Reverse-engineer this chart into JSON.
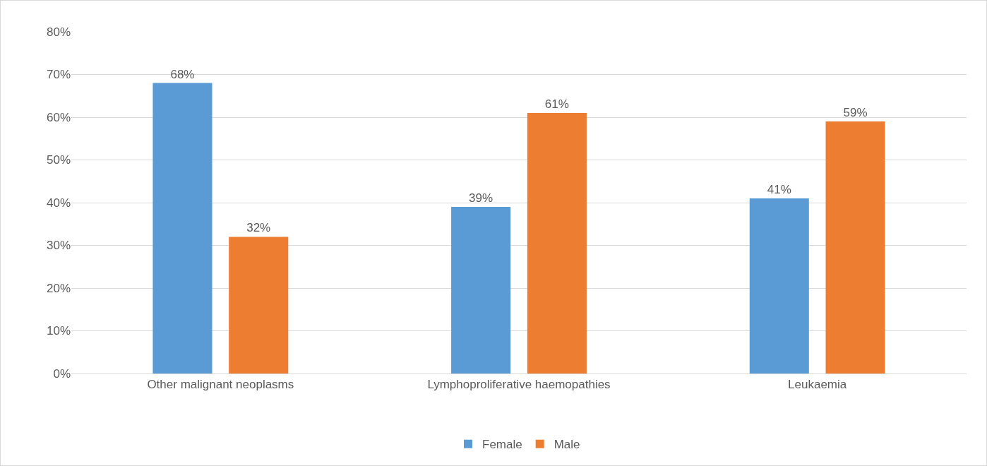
{
  "chart_data": {
    "type": "bar",
    "categories": [
      "Other malignant neoplasms",
      "Lymphoproliferative haemopathies",
      "Leukaemia"
    ],
    "series": [
      {
        "name": "Female",
        "color": "#5b9bd5",
        "values": [
          68,
          39,
          41
        ],
        "value_labels": [
          "68%",
          "39%",
          "41%"
        ]
      },
      {
        "name": "Male",
        "color": "#ed7d31",
        "values": [
          32,
          61,
          59
        ],
        "value_labels": [
          "32%",
          "61%",
          "59%"
        ]
      }
    ],
    "ylim": [
      0,
      80
    ],
    "yticks": [
      {
        "value": 0,
        "label": "0%"
      },
      {
        "value": 10,
        "label": "10%"
      },
      {
        "value": 20,
        "label": "20%"
      },
      {
        "value": 30,
        "label": "30%"
      },
      {
        "value": 40,
        "label": "40%"
      },
      {
        "value": 50,
        "label": "50%"
      },
      {
        "value": 60,
        "label": "60%"
      },
      {
        "value": 70,
        "label": "70%"
      },
      {
        "value": 80,
        "label": "80%"
      }
    ],
    "grid": "y",
    "legend": "bottom"
  }
}
